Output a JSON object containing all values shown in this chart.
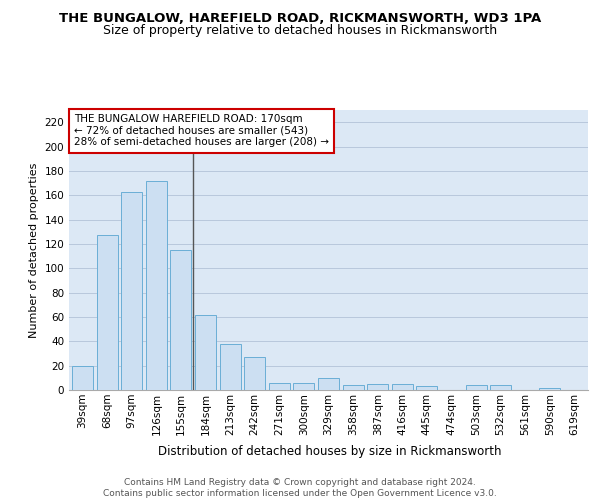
{
  "title": "THE BUNGALOW, HAREFIELD ROAD, RICKMANSWORTH, WD3 1PA",
  "subtitle": "Size of property relative to detached houses in Rickmansworth",
  "xlabel": "Distribution of detached houses by size in Rickmansworth",
  "ylabel": "Number of detached properties",
  "categories": [
    "39sqm",
    "68sqm",
    "97sqm",
    "126sqm",
    "155sqm",
    "184sqm",
    "213sqm",
    "242sqm",
    "271sqm",
    "300sqm",
    "329sqm",
    "358sqm",
    "387sqm",
    "416sqm",
    "445sqm",
    "474sqm",
    "503sqm",
    "532sqm",
    "561sqm",
    "590sqm",
    "619sqm"
  ],
  "values": [
    20,
    127,
    163,
    172,
    115,
    62,
    38,
    27,
    6,
    6,
    10,
    4,
    5,
    5,
    3,
    0,
    4,
    4,
    0,
    2,
    0
  ],
  "bar_color": "#ccdff2",
  "bar_edge_color": "#6aaed6",
  "highlight_line_color": "#555555",
  "annotation_text": "THE BUNGALOW HAREFIELD ROAD: 170sqm\n← 72% of detached houses are smaller (543)\n28% of semi-detached houses are larger (208) →",
  "annotation_box_color": "#ffffff",
  "annotation_box_edge_color": "#cc0000",
  "ylim": [
    0,
    230
  ],
  "yticks": [
    0,
    20,
    40,
    60,
    80,
    100,
    120,
    140,
    160,
    180,
    200,
    220
  ],
  "grid_color": "#b8c8dc",
  "background_color": "#dce8f5",
  "footer_text": "Contains HM Land Registry data © Crown copyright and database right 2024.\nContains public sector information licensed under the Open Government Licence v3.0.",
  "title_fontsize": 9.5,
  "subtitle_fontsize": 9,
  "xlabel_fontsize": 8.5,
  "ylabel_fontsize": 8,
  "tick_fontsize": 7.5,
  "annotation_fontsize": 7.5,
  "footer_fontsize": 6.5
}
